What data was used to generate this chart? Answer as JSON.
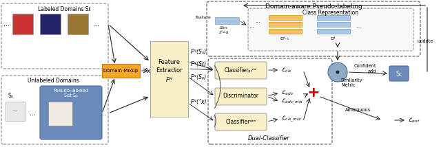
{
  "fig_width": 6.4,
  "fig_height": 2.14,
  "dpi": 100,
  "bg_color": "#ffffff",
  "title_domain_aware": "Domain-aware Pseudo-labeling",
  "title_class_rep": "Class Representation",
  "title_dual_classifier": "Dual-Classifier",
  "title_labeled": "Labeled Domains Sℓ",
  "title_unlabeled": "Unlabeled Domains",
  "feature_extractor_color": "#faf0c8",
  "classifier_box_color": "#faf0c8",
  "pseudo_labeled_bg": "#6b8cba",
  "domain_mixup_color": "#f5a623",
  "sp_box_color": "#6b8cba",
  "feature_bar_color": "#a8c4e0",
  "class_rep_orange": "#f5a623",
  "class_rep_blue": "#a8c4e0",
  "plus_color": "#cc0000",
  "similarity_circle_color": "#8faac8",
  "arrow_color": "#222222",
  "dashed_border_color": "#555555",
  "orange_border": "#f5a623",
  "font_size_title": 7,
  "font_size_label": 6,
  "font_size_small": 5
}
